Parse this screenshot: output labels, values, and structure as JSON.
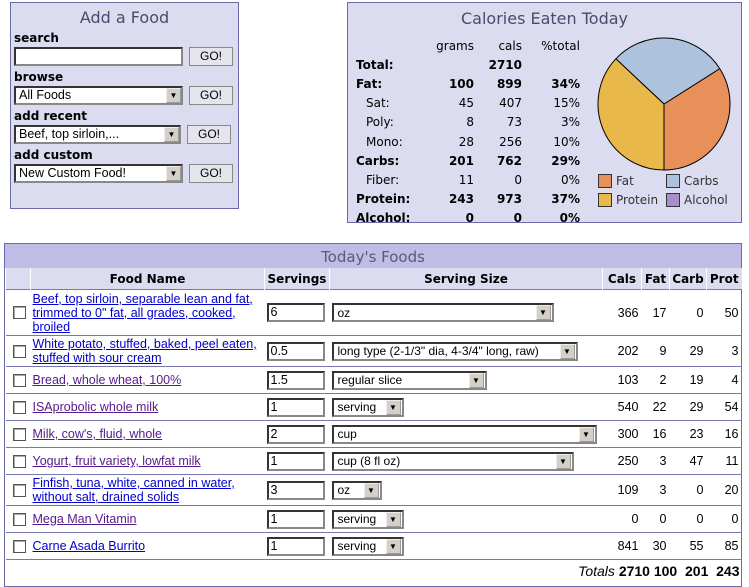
{
  "add_food": {
    "title": "Add a Food",
    "search_label": "search",
    "search_value": "",
    "browse_label": "browse",
    "browse_value": "All Foods",
    "recent_label": "add recent",
    "recent_value": "Beef, top sirloin,...",
    "custom_label": "add custom",
    "custom_value": "New Custom Food!",
    "go": "GO!"
  },
  "calories": {
    "title": "Calories Eaten Today",
    "headers": [
      "grams",
      "cals",
      "%total"
    ],
    "rows": [
      {
        "name": "Total:",
        "grams": "",
        "cals": "2710",
        "pct": "",
        "bold": true
      },
      {
        "name": "Fat:",
        "grams": "100",
        "cals": "899",
        "pct": "34%",
        "bold": true
      },
      {
        "name": "Sat:",
        "grams": "45",
        "cals": "407",
        "pct": "15%"
      },
      {
        "name": "Poly:",
        "grams": "8",
        "cals": "73",
        "pct": "3%"
      },
      {
        "name": "Mono:",
        "grams": "28",
        "cals": "256",
        "pct": "10%"
      },
      {
        "name": "Carbs:",
        "grams": "201",
        "cals": "762",
        "pct": "29%",
        "bold": true
      },
      {
        "name": "Fiber:",
        "grams": "11",
        "cals": "0",
        "pct": "0%"
      },
      {
        "name": "Protein:",
        "grams": "243",
        "cals": "973",
        "pct": "37%",
        "bold": true
      },
      {
        "name": "Alcohol:",
        "grams": "0",
        "cals": "0",
        "pct": "0%",
        "bold": true
      }
    ]
  },
  "chart_data": {
    "type": "pie",
    "title": "Calories Eaten Today",
    "categories": [
      "Fat",
      "Carbs",
      "Protein",
      "Alcohol"
    ],
    "values": [
      34,
      29,
      37,
      0
    ],
    "colors": [
      "#e8905a",
      "#adc2dc",
      "#e8b84a",
      "#a98ccc"
    ],
    "legend": [
      "Fat",
      "Carbs",
      "Protein",
      "Alcohol"
    ],
    "legend_position": "bottom"
  },
  "foods": {
    "title": "Today's Foods",
    "headers": [
      "Food Name",
      "Servings",
      "Serving Size",
      "Cals",
      "Fat",
      "Carb",
      "Prot"
    ],
    "rows": [
      {
        "name": "Beef, top sirloin, separable lean and fat, trimmed to 0\" fat, all grades, cooked, broiled",
        "visited": false,
        "servings": "6",
        "size": "oz",
        "cals": "366",
        "fat": "17",
        "carb": "0",
        "prot": "50"
      },
      {
        "name": "White potato, stuffed, baked, peel eaten, stuffed with sour cream",
        "visited": false,
        "servings": "0.5",
        "size": "long type (2-1/3\" dia, 4-3/4\" long, raw)",
        "cals": "202",
        "fat": "9",
        "carb": "29",
        "prot": "3"
      },
      {
        "name": "Bread, whole wheat, 100%",
        "visited": true,
        "servings": "1.5",
        "size": "regular slice",
        "cals": "103",
        "fat": "2",
        "carb": "19",
        "prot": "4"
      },
      {
        "name": "ISAprobolic whole milk",
        "visited": true,
        "servings": "1",
        "size": "serving",
        "cals": "540",
        "fat": "22",
        "carb": "29",
        "prot": "54"
      },
      {
        "name": "Milk, cow's, fluid, whole",
        "visited": true,
        "servings": "2",
        "size": "cup",
        "cals": "300",
        "fat": "16",
        "carb": "23",
        "prot": "16"
      },
      {
        "name": "Yogurt, fruit variety, lowfat milk",
        "visited": true,
        "servings": "1",
        "size": "cup (8 fl oz)",
        "cals": "250",
        "fat": "3",
        "carb": "47",
        "prot": "11"
      },
      {
        "name": "Finfish, tuna, white, canned in water, without salt, drained solids",
        "visited": false,
        "servings": "3",
        "size": "oz",
        "cals": "109",
        "fat": "3",
        "carb": "0",
        "prot": "20"
      },
      {
        "name": "Mega Man Vitamin",
        "visited": true,
        "servings": "1",
        "size": "serving",
        "cals": "0",
        "fat": "0",
        "carb": "0",
        "prot": "0"
      },
      {
        "name": "Carne Asada Burrito",
        "visited": false,
        "servings": "1",
        "size": "serving",
        "cals": "841",
        "fat": "30",
        "carb": "55",
        "prot": "85"
      }
    ],
    "totals": {
      "label": "Totals",
      "cals": "2710",
      "fat": "100",
      "carb": "201",
      "prot": "243"
    }
  }
}
